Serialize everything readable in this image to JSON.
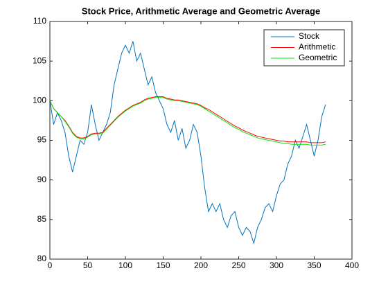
{
  "chart_data": {
    "type": "line",
    "title": "Stock Price, Arithmetic Average and Geometric Average",
    "x": [
      0,
      5,
      10,
      15,
      20,
      25,
      30,
      35,
      40,
      45,
      50,
      55,
      60,
      65,
      70,
      75,
      80,
      85,
      90,
      95,
      100,
      105,
      110,
      115,
      120,
      125,
      130,
      135,
      140,
      145,
      150,
      155,
      160,
      165,
      170,
      175,
      180,
      185,
      190,
      195,
      200,
      205,
      210,
      215,
      220,
      225,
      230,
      235,
      240,
      245,
      250,
      255,
      260,
      265,
      270,
      275,
      280,
      285,
      290,
      295,
      300,
      305,
      310,
      315,
      320,
      325,
      330,
      335,
      340,
      345,
      350,
      355,
      360,
      365
    ],
    "series": [
      {
        "name": "Stock",
        "color": "#0072bd",
        "values": [
          100,
          97,
          98.5,
          97.5,
          96,
          93,
          91,
          93,
          95,
          94.5,
          96,
          99.5,
          97,
          95,
          96,
          97,
          98.5,
          102,
          104,
          106,
          107,
          106,
          107.5,
          105,
          106,
          104,
          102,
          103,
          101,
          100,
          99,
          97,
          96,
          97.5,
          95,
          96.5,
          94,
          95,
          97,
          96,
          93,
          89,
          86,
          87,
          86,
          87,
          85,
          84,
          85.5,
          86,
          84,
          83,
          84,
          83.5,
          82,
          84,
          85,
          86.5,
          87,
          86,
          88,
          89.5,
          90,
          92,
          93,
          95,
          94,
          95.5,
          97,
          95,
          93,
          95,
          98,
          99.5
        ]
      },
      {
        "name": "Arithmetic",
        "color": "#ff0000",
        "values": [
          100,
          99,
          98.5,
          98,
          97.5,
          96.8,
          96,
          95.5,
          95.3,
          95.3,
          95.5,
          95.8,
          95.9,
          95.9,
          96,
          96.5,
          97,
          97.5,
          98,
          98.4,
          98.8,
          99.1,
          99.4,
          99.6,
          99.8,
          100.1,
          100.3,
          100.4,
          100.5,
          100.5,
          100.5,
          100.3,
          100.2,
          100.1,
          100.1,
          100,
          99.9,
          99.8,
          99.7,
          99.6,
          99.4,
          99.1,
          98.9,
          98.6,
          98.3,
          98,
          97.7,
          97.4,
          97.1,
          96.8,
          96.6,
          96.3,
          96.1,
          95.9,
          95.7,
          95.5,
          95.4,
          95.3,
          95.2,
          95.1,
          95,
          94.9,
          94.9,
          94.8,
          94.8,
          94.8,
          94.8,
          94.8,
          94.8,
          94.7,
          94.7,
          94.7,
          94.7,
          94.8
        ]
      },
      {
        "name": "Geometric",
        "color": "#00e600",
        "values": [
          100,
          99,
          98.5,
          98,
          97.4,
          96.7,
          95.9,
          95.4,
          95.2,
          95.2,
          95.4,
          95.7,
          95.8,
          95.8,
          95.9,
          96.4,
          96.9,
          97.4,
          97.9,
          98.3,
          98.7,
          99,
          99.3,
          99.5,
          99.7,
          100,
          100.2,
          100.3,
          100.4,
          100.4,
          100.4,
          100.2,
          100.1,
          100,
          100,
          99.9,
          99.8,
          99.7,
          99.6,
          99.5,
          99.3,
          99,
          98.7,
          98.4,
          98.1,
          97.8,
          97.5,
          97.2,
          96.9,
          96.6,
          96.4,
          96.1,
          95.9,
          95.7,
          95.5,
          95.3,
          95.2,
          95.1,
          95,
          94.9,
          94.8,
          94.7,
          94.6,
          94.6,
          94.5,
          94.5,
          94.5,
          94.5,
          94.5,
          94.4,
          94.4,
          94.4,
          94.4,
          94.5
        ]
      }
    ],
    "xlim": [
      0,
      400
    ],
    "xticks": [
      0,
      50,
      100,
      150,
      200,
      250,
      300,
      350,
      400
    ],
    "ylim": [
      80,
      110
    ],
    "yticks": [
      80,
      85,
      90,
      95,
      100,
      105,
      110
    ],
    "grid": false,
    "legend": "northeast"
  }
}
